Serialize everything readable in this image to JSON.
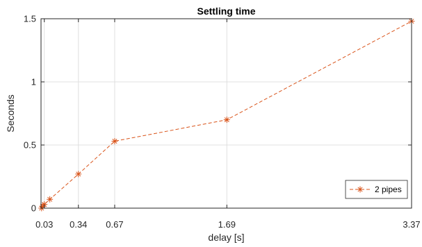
{
  "chart_data": {
    "type": "line",
    "title": "Settling time",
    "xlabel": "delay [s]",
    "ylabel": "Seconds",
    "x": [
      0.005,
      0.015,
      0.03,
      0.08,
      0.34,
      0.67,
      1.69,
      3.37
    ],
    "series": [
      {
        "name": "2 pipes",
        "values": [
          0.0,
          0.015,
          0.03,
          0.07,
          0.27,
          0.53,
          0.7,
          1.48
        ],
        "color": "#D95319",
        "line_style": "dashed",
        "marker": "asterisk"
      }
    ],
    "xlim": [
      0,
      3.37
    ],
    "ylim": [
      0,
      1.5
    ],
    "xticks": [
      0.03,
      0.34,
      0.67,
      1.69,
      3.37
    ],
    "xtick_labels": [
      "0.03",
      "0.34",
      "0.67",
      "1.69",
      "3.37"
    ],
    "yticks": [
      0,
      0.5,
      1,
      1.5
    ],
    "ytick_labels": [
      "0",
      "0.5",
      "1",
      "1.5"
    ],
    "grid": true,
    "legend_position": "bottom-right"
  }
}
